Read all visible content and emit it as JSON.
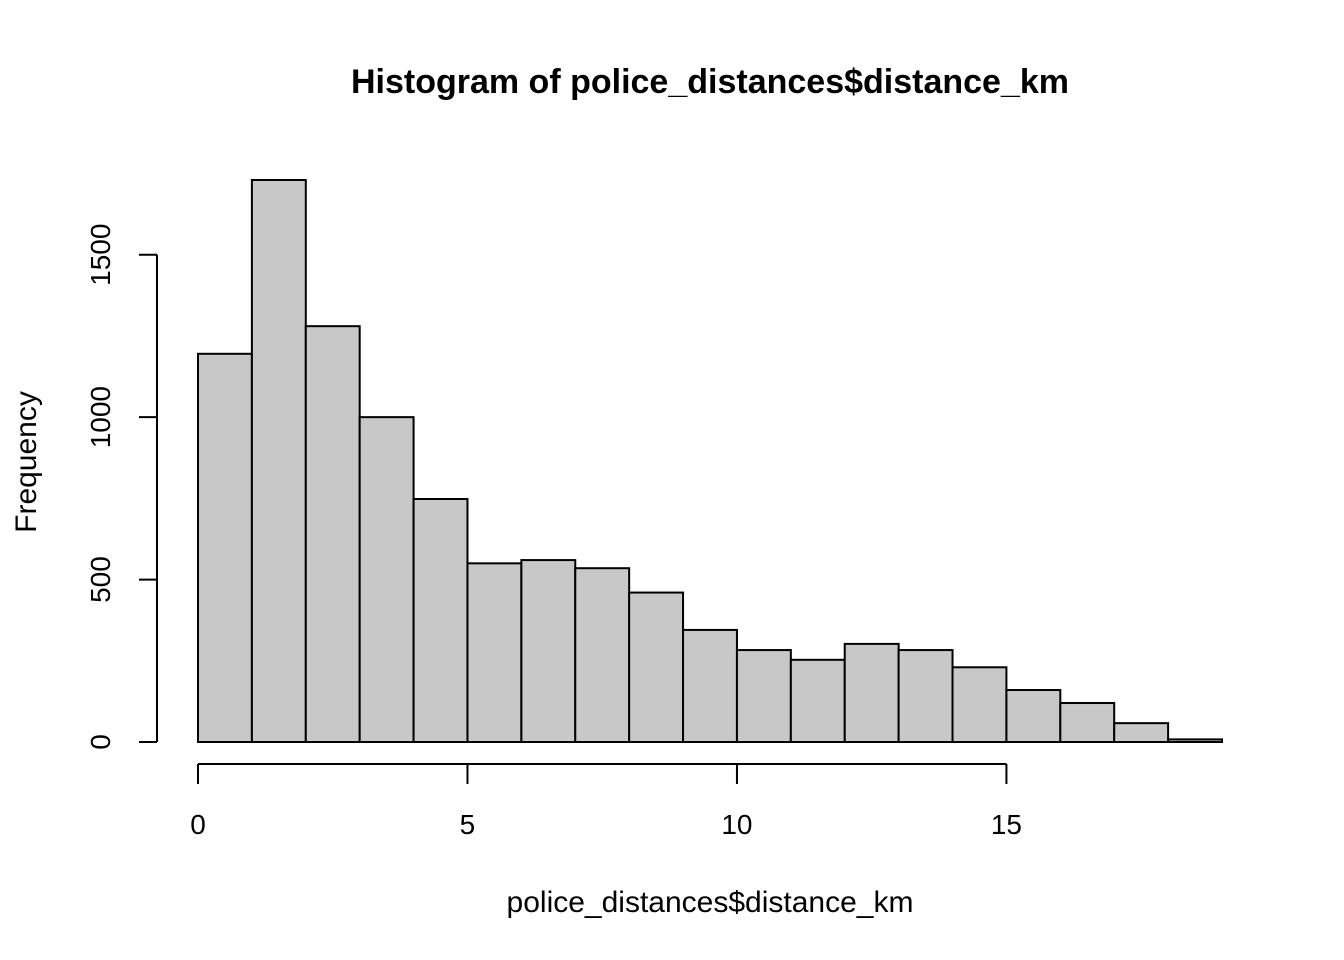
{
  "chart_data": {
    "type": "bar",
    "title": "Histogram of police_distances$distance_km",
    "xlabel": "police_distances$distance_km",
    "ylabel": "Frequency",
    "bin_edges": [
      0,
      1,
      2,
      3,
      4,
      5,
      6,
      7,
      8,
      9,
      10,
      11,
      12,
      13,
      14,
      15,
      16,
      17,
      18,
      19
    ],
    "values": [
      1195,
      1730,
      1280,
      1000,
      748,
      550,
      560,
      535,
      460,
      345,
      283,
      253,
      302,
      283,
      230,
      160,
      120,
      58,
      8
    ],
    "xlim": [
      0,
      19
    ],
    "ylim": [
      0,
      1730
    ],
    "x_ticks": [
      0,
      5,
      10,
      15
    ],
    "x_tick_labels": [
      "0",
      "5",
      "10",
      "15"
    ],
    "y_ticks": [
      0,
      500,
      1000,
      1500
    ],
    "y_tick_labels": [
      "0",
      "500",
      "1000",
      "1500"
    ],
    "bar_color": "#c8c8c8",
    "grid": false,
    "legend": "none"
  }
}
